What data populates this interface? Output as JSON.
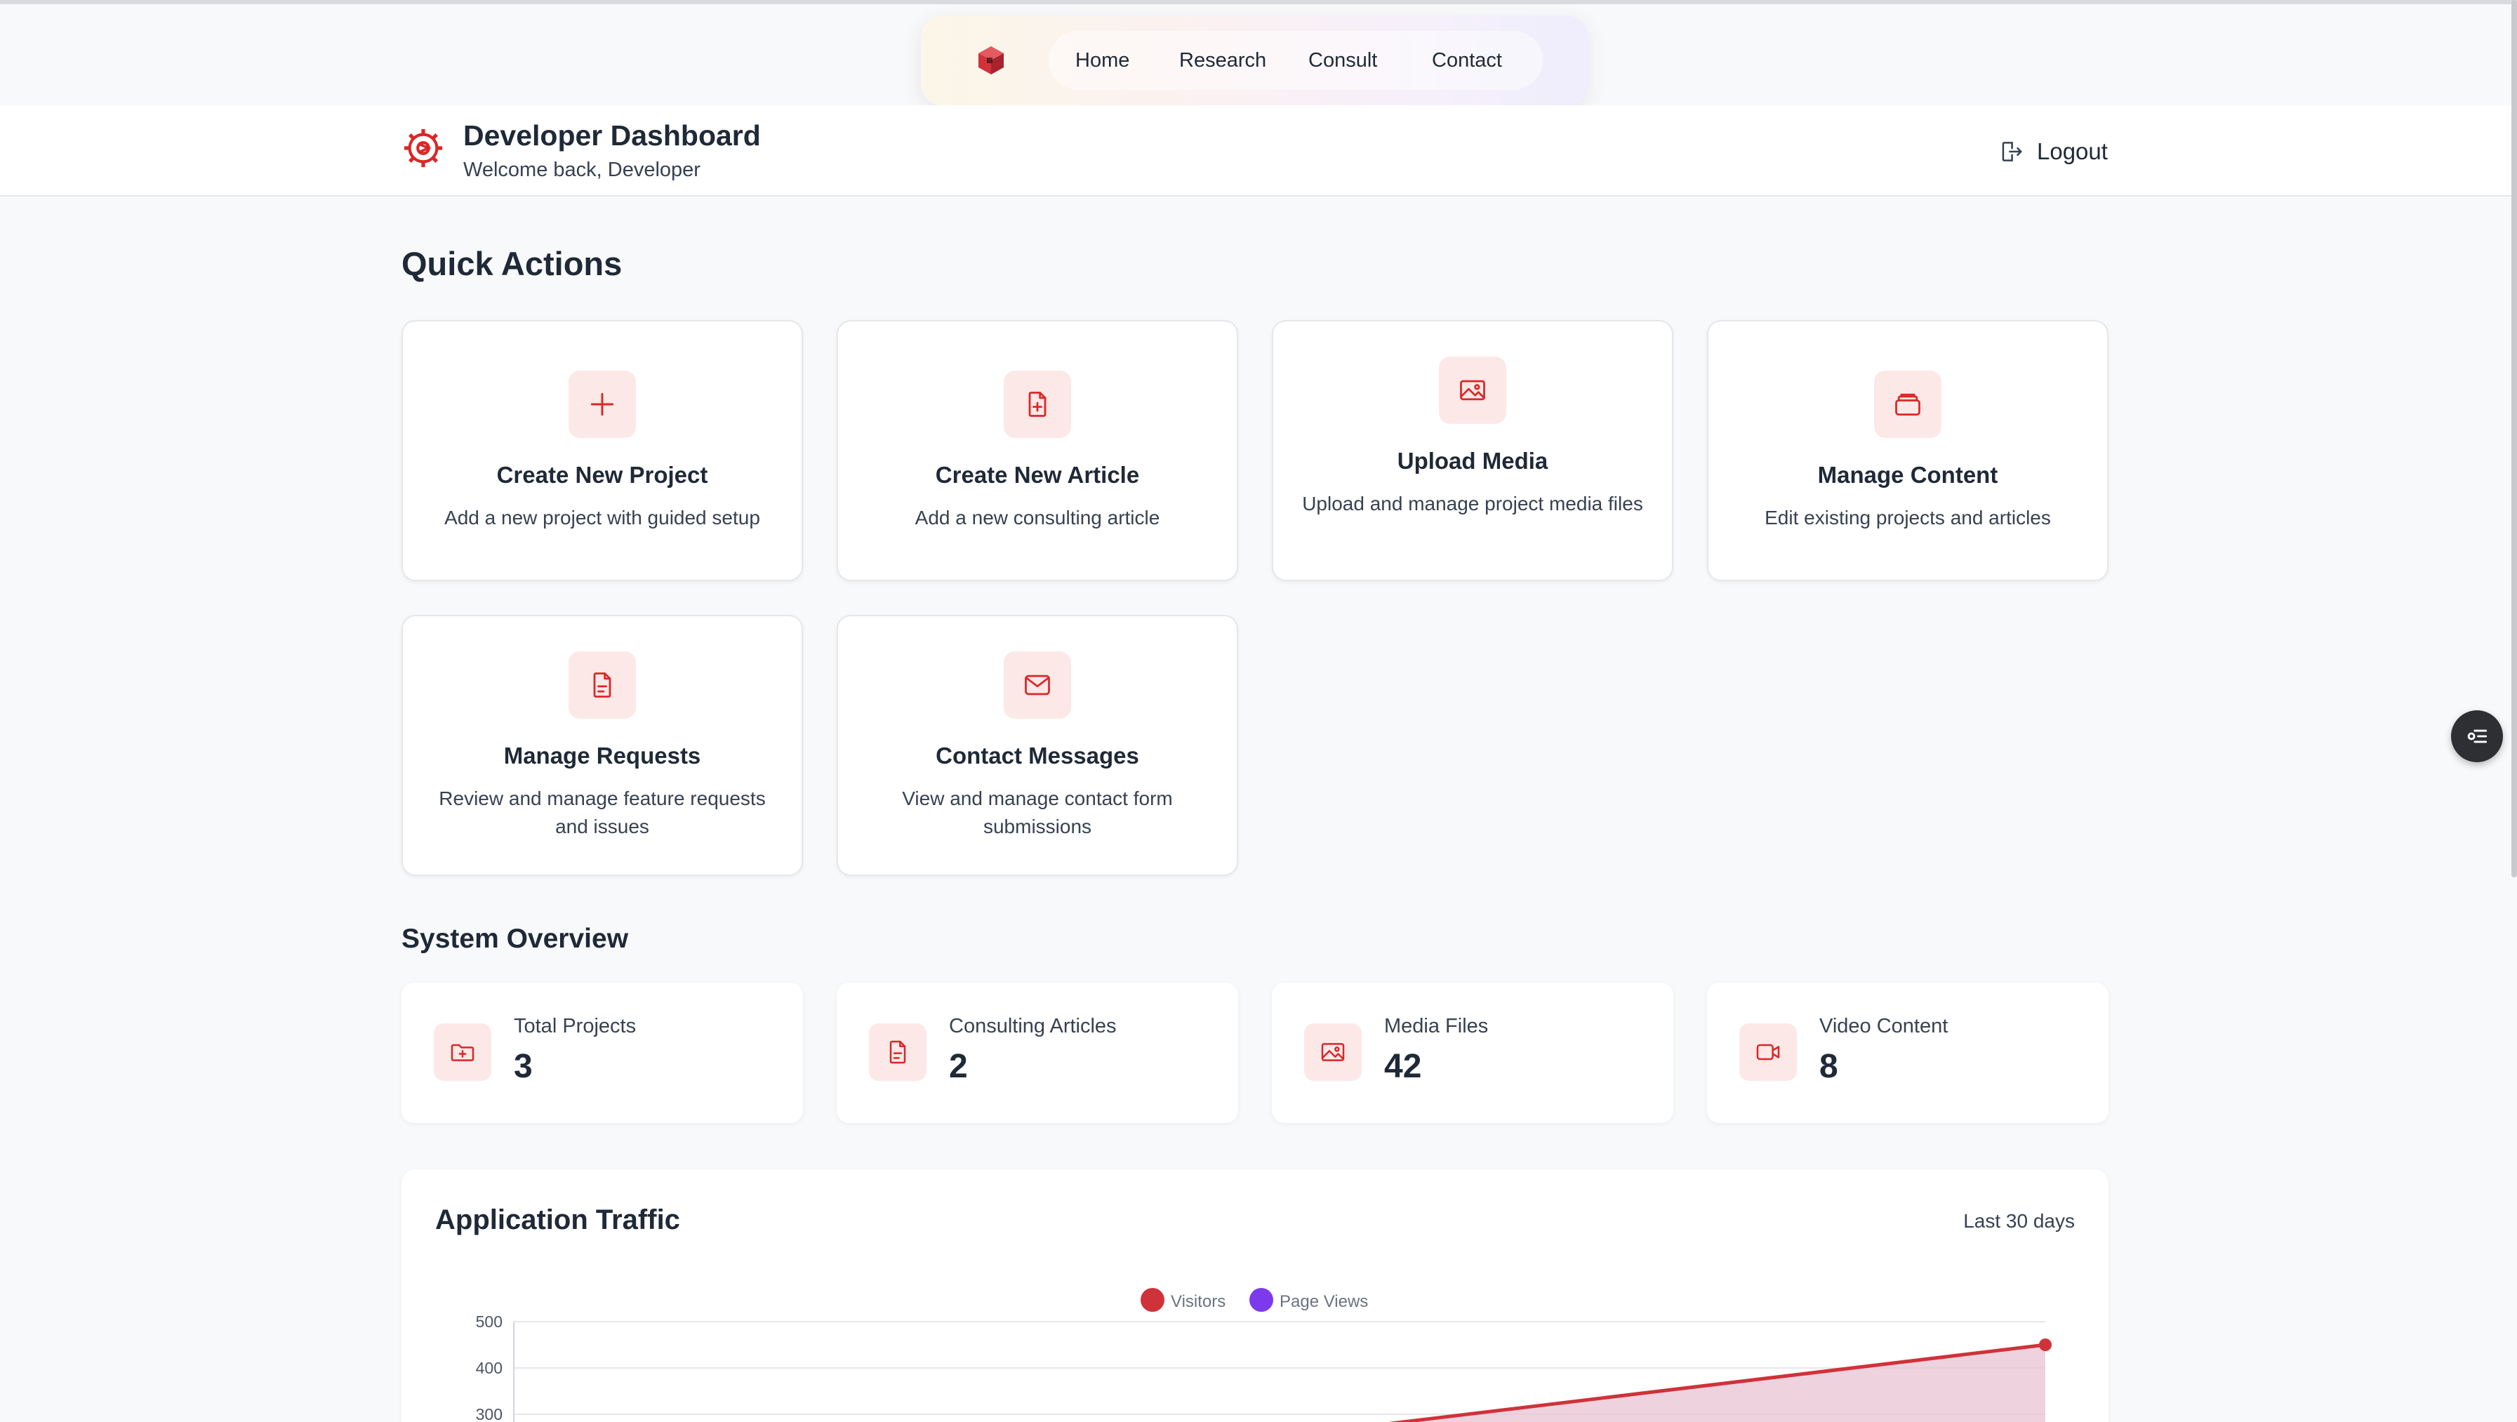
{
  "nav": {
    "logo_icon": "cube-logo-icon",
    "links": [
      "Home",
      "Research",
      "Consult",
      "Contact"
    ]
  },
  "header": {
    "icon": "gear-icon",
    "title": "Developer Dashboard",
    "subtitle": "Welcome back, Developer",
    "logout_label": "Logout",
    "logout_icon": "logout-icon"
  },
  "quick_actions": {
    "title": "Quick Actions",
    "cards": [
      {
        "icon": "plus-icon",
        "title": "Create New Project",
        "desc": "Add a new project with guided setup"
      },
      {
        "icon": "file-plus-icon",
        "title": "Create New Article",
        "desc": "Add a new consulting article"
      },
      {
        "icon": "image-icon",
        "title": "Upload Media",
        "desc": "Upload and manage project media files"
      },
      {
        "icon": "archive-icon",
        "title": "Manage Content",
        "desc": "Edit existing projects and articles"
      },
      {
        "icon": "file-text-icon",
        "title": "Manage Requests",
        "desc": "Review and manage feature requests and issues"
      },
      {
        "icon": "mail-icon",
        "title": "Contact Messages",
        "desc": "View and manage contact form submissions"
      }
    ]
  },
  "system_overview": {
    "title": "System Overview",
    "stats": [
      {
        "icon": "folder-plus-icon",
        "label": "Total Projects",
        "value": "3"
      },
      {
        "icon": "file-text-icon",
        "label": "Consulting Articles",
        "value": "2"
      },
      {
        "icon": "image-icon",
        "label": "Media Files",
        "value": "42"
      },
      {
        "icon": "video-icon",
        "label": "Video Content",
        "value": "8"
      }
    ]
  },
  "traffic": {
    "title": "Application Traffic",
    "range": "Last 30 days"
  },
  "chart_data": {
    "type": "line",
    "title": "",
    "xlabel": "",
    "ylabel": "",
    "legend_position": "top-center",
    "y_ticks_visible": [
      500,
      400,
      300
    ],
    "series": [
      {
        "name": "Visitors",
        "color": "#d0323a",
        "last_value": 450,
        "fill": true
      },
      {
        "name": "Page Views",
        "color": "#7c3aed"
      }
    ],
    "colors": {
      "accent": "#dc2626",
      "accent_bg": "#fde8e8"
    }
  },
  "side_button_icon": "list-settings-icon"
}
